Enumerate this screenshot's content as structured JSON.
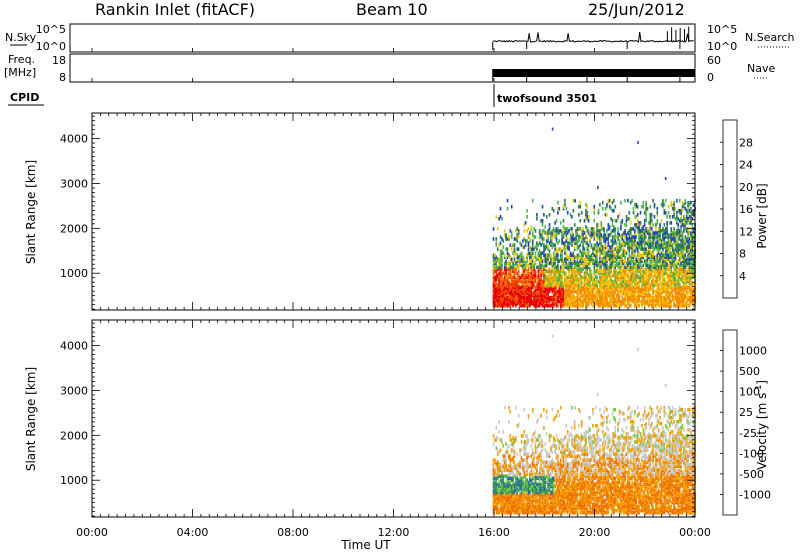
{
  "header": {
    "station": "Rankin Inlet (fitACF)",
    "beam": "Beam 10",
    "date": "25/Jun/2012"
  },
  "noise_panel": {
    "left_label": "N.Sky",
    "left_ticks": [
      "10^5",
      "10^0"
    ],
    "right_ticks": [
      "10^5",
      "10^0"
    ],
    "right_label": "N.Search"
  },
  "freq_panel": {
    "left_label_1": "Freq.",
    "left_label_2": "[MHz]",
    "left_ticks": [
      "18",
      "8"
    ],
    "right_ticks": [
      "60",
      "0"
    ],
    "right_label": "Nave"
  },
  "cpid": {
    "label": "CPID",
    "program": "twofsound 3501",
    "start_hour": 16.0
  },
  "x_axis": {
    "ticks": [
      "00:00",
      "04:00",
      "08:00",
      "12:00",
      "16:00",
      "20:00",
      "00:00"
    ],
    "label": "Time UT"
  },
  "chart_data": [
    {
      "type": "heatmap",
      "name": "power",
      "ylabel": "Slant Range [km]",
      "yticks": [
        "1000",
        "2000",
        "3000",
        "4000"
      ],
      "ylim": [
        180,
        4570
      ],
      "xlim": [
        0,
        24
      ],
      "data_start_hour": 15.95,
      "colorbar": {
        "label": "Power [dB]",
        "ticks": [
          "4",
          "8",
          "12",
          "16",
          "20",
          "24",
          "28"
        ],
        "range": [
          0,
          32
        ],
        "colors": [
          "#0000f0",
          "#1e46b4",
          "#2d7a4f",
          "#4fb34a",
          "#f2c500",
          "#f58a00",
          "#f04d00",
          "#e60000"
        ]
      }
    },
    {
      "type": "heatmap",
      "name": "velocity",
      "ylabel": "Slant Range [km]",
      "yticks": [
        "1000",
        "2000",
        "3000",
        "4000"
      ],
      "ylim": [
        180,
        4570
      ],
      "xlim": [
        0,
        24
      ],
      "data_start_hour": 15.95,
      "colorbar": {
        "label": "Velocity [m s",
        "label_sup": "-1",
        "label_end": "]",
        "ticks": [
          "1000",
          "500",
          "100",
          "25",
          "-25",
          "-100",
          "-500",
          "-1000"
        ],
        "colors": [
          "#1c2fb0",
          "#2a6cab",
          "#3a8f5a",
          "#6ccf3a",
          "#c8c8c8",
          "#f5a000",
          "#f07000",
          "#e83800",
          "#e00000"
        ]
      }
    }
  ]
}
